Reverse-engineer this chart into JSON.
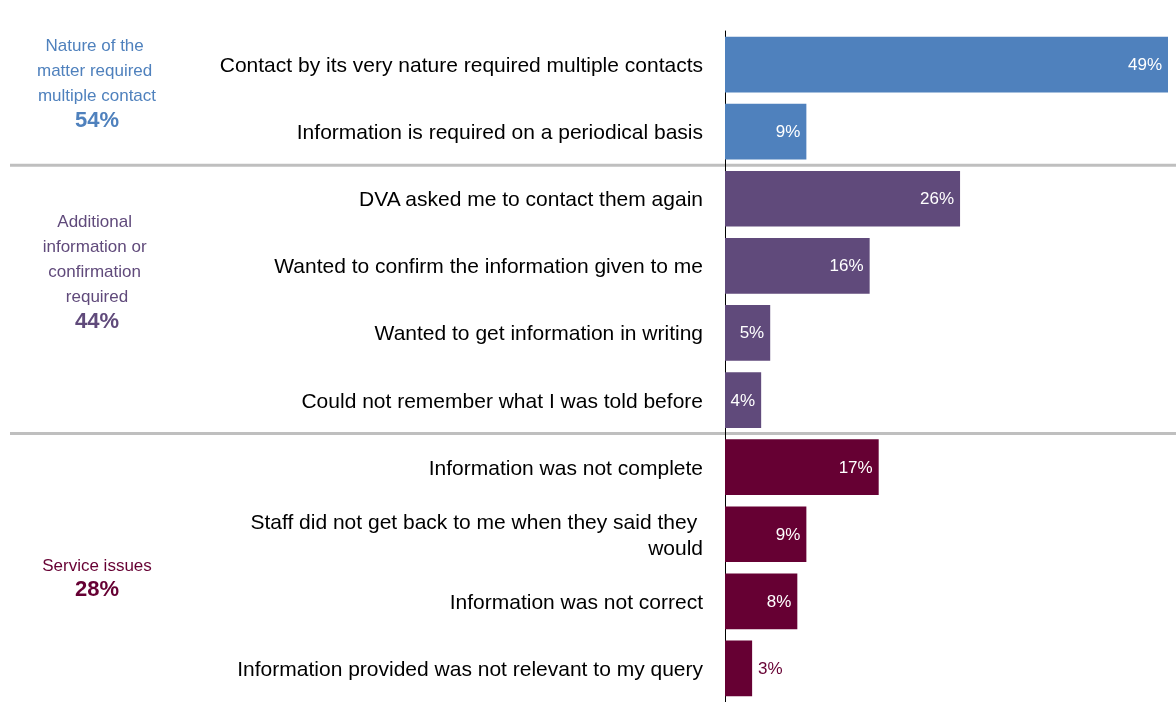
{
  "chart_data": {
    "type": "bar",
    "orientation": "horizontal",
    "categories": [
      "Contact by its very nature required multiple contacts",
      "Information is required on a periodical basis",
      "DVA asked me to contact them again",
      "Wanted to confirm the information given to me",
      "Wanted to get information in writing",
      "Could not remember what I was told before",
      "Information was not complete",
      "Staff did not get back to me when they said they would",
      "Information was not correct",
      "Information provided was not relevant to my query"
    ],
    "values": [
      49,
      9,
      26,
      16,
      5,
      4,
      17,
      9,
      8,
      3
    ],
    "value_labels": [
      "49%",
      "9%",
      "26%",
      "16%",
      "5%",
      "4%",
      "17%",
      "9%",
      "8%",
      "3%"
    ],
    "colors": [
      "#4f81bd",
      "#4f81bd",
      "#604a7b",
      "#604a7b",
      "#604a7b",
      "#604a7b",
      "#660033",
      "#660033",
      "#660033",
      "#660033"
    ],
    "annotations": [
      "Nature of the matter required multiple contact",
      "54%",
      "Additional information or confirmation required",
      "44%",
      "Service issues",
      "28%"
    ]
  }
}
